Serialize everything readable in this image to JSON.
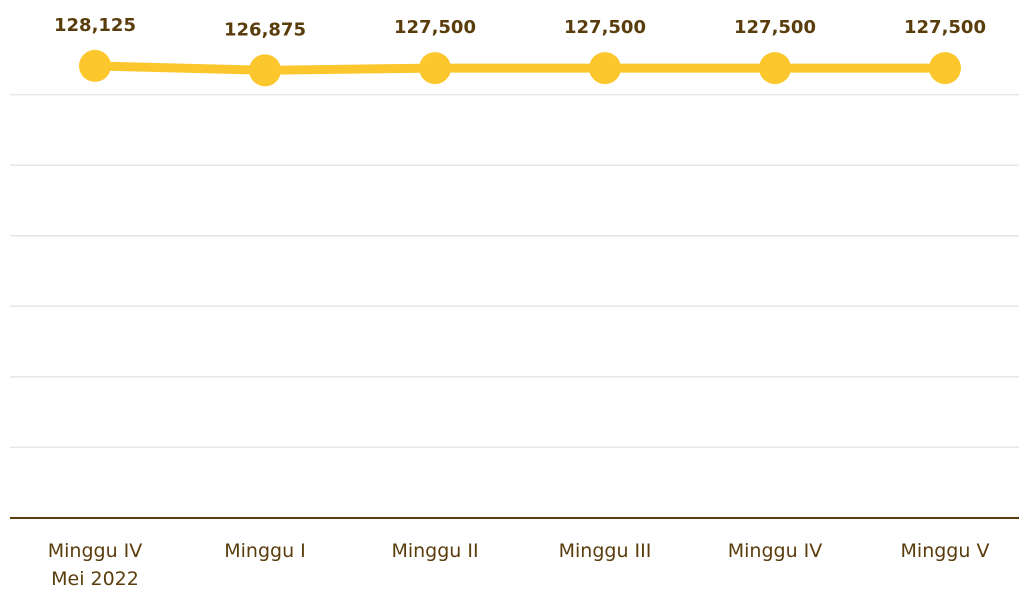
{
  "chart_data": {
    "type": "line",
    "categories": [
      "Minggu IV\nMei 2022",
      "Minggu I",
      "Minggu II",
      "Minggu III",
      "Minggu IV",
      "Minggu V"
    ],
    "values": [
      128125,
      126875,
      127500,
      127500,
      127500,
      127500
    ],
    "value_labels": [
      "128,125",
      "126,875",
      "127,500",
      "127,500",
      "127,500",
      "127,500"
    ],
    "color": "#fcc72c",
    "ylim": [
      0,
      140000
    ],
    "yticks": [
      0,
      20000,
      40000,
      60000,
      80000,
      100000,
      120000
    ],
    "grid": true
  }
}
